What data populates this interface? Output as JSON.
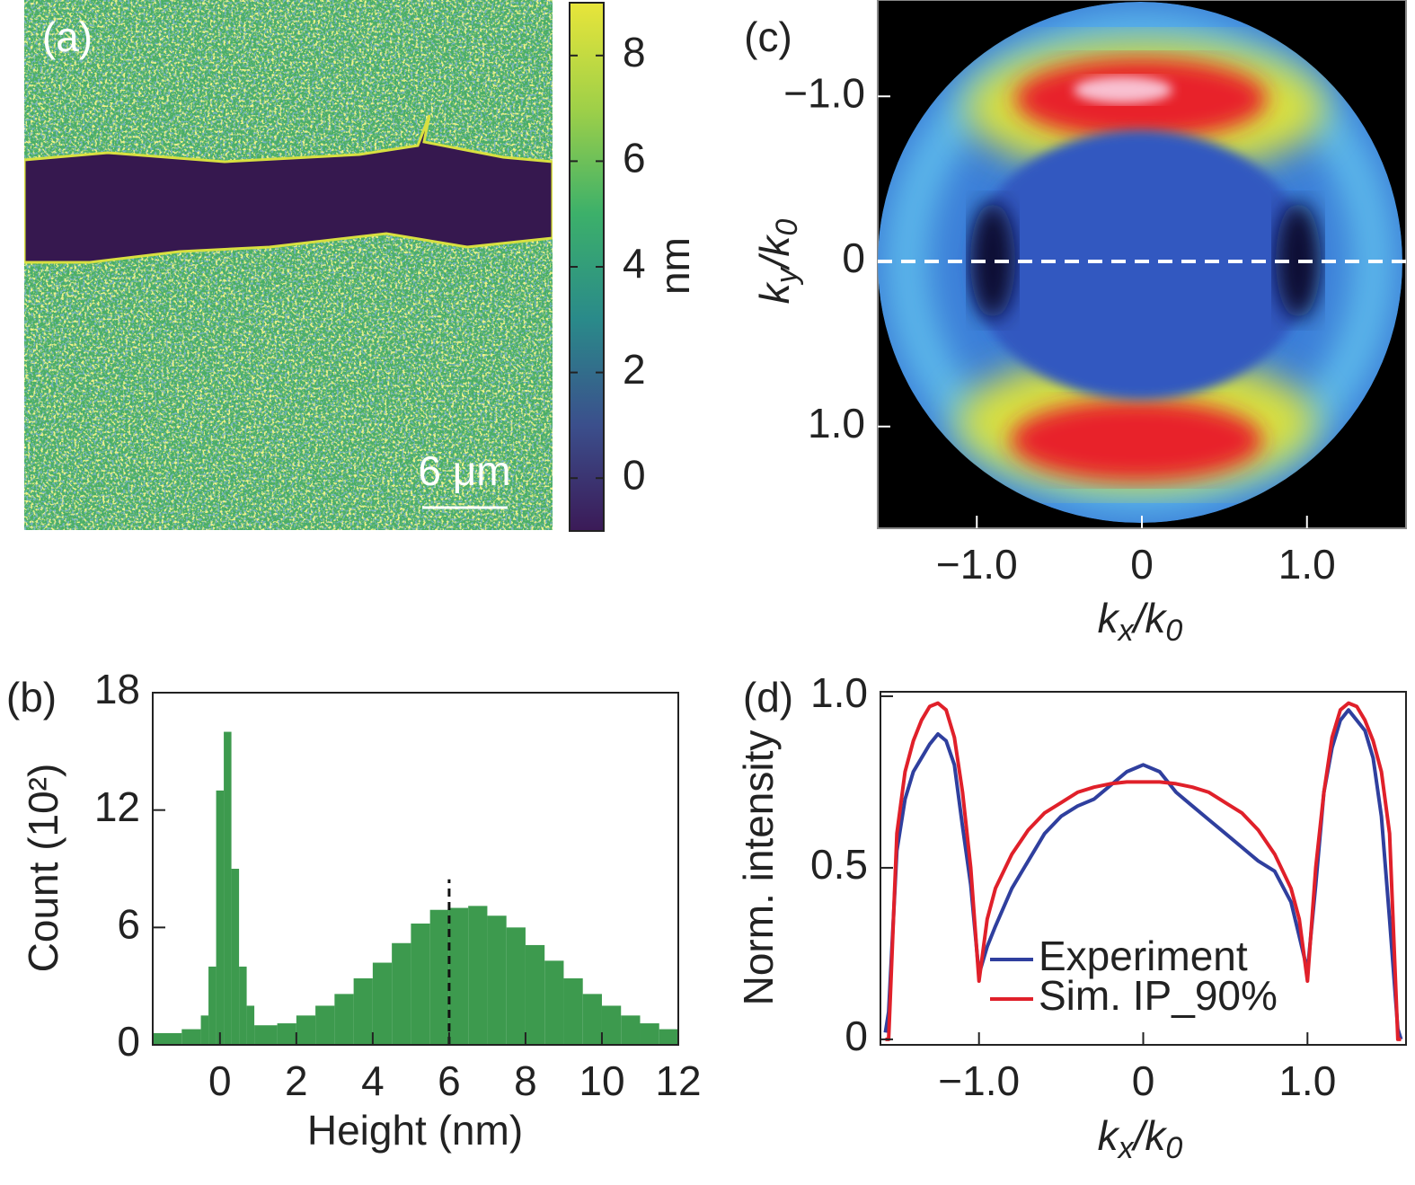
{
  "chart_data": [
    {
      "type": "image",
      "panel_label": "(a)",
      "scale_bar": "6 μm",
      "colorbar": {
        "label": "nm",
        "clim": [
          -1,
          9
        ],
        "cticks": [
          0,
          2,
          4,
          6,
          8
        ],
        "colormap": [
          "#3b1a57",
          "#3b4f8c",
          "#2a8a8a",
          "#3cb06a",
          "#9fd048",
          "#e8e53a"
        ]
      }
    },
    {
      "type": "histogram",
      "panel_label": "(b)",
      "xlabel": "Height (nm)",
      "ylabel": "Count (10²)",
      "color": "#3d9a4e",
      "bins": [
        -1.8,
        -1.0,
        -0.5,
        -0.3,
        -0.1,
        0.1,
        0.3,
        0.5,
        0.7,
        0.9,
        1.5,
        2.0,
        2.5,
        3.0,
        3.5,
        4.0,
        4.5,
        5.0,
        5.5,
        6.0,
        6.5,
        7.0,
        7.5,
        8.0,
        8.5,
        9.0,
        9.5,
        10.0,
        10.5,
        11.0,
        11.5,
        12.0
      ],
      "values": [
        0.6,
        0.8,
        1.5,
        4,
        13,
        16,
        9,
        4,
        2,
        1.0,
        1.1,
        1.5,
        2.0,
        2.6,
        3.4,
        4.2,
        5.2,
        6.2,
        6.9,
        7.0,
        7.1,
        6.6,
        6.0,
        5.1,
        4.3,
        3.4,
        2.6,
        2.0,
        1.5,
        1.1,
        0.8
      ],
      "xlim": [
        -1.76,
        12
      ],
      "xticks": [
        0,
        2,
        4,
        6,
        8,
        10,
        12
      ],
      "ylim": [
        0,
        18
      ],
      "yticks": [
        0,
        6,
        12,
        18
      ],
      "vline": 6
    },
    {
      "type": "image_axes",
      "panel_label": "(c)",
      "xlabel": [
        "k",
        "x",
        "/",
        "k",
        "0"
      ],
      "ylabel": [
        "k",
        "y",
        "/",
        "k",
        "0"
      ],
      "xlim": [
        -1.6,
        1.6
      ],
      "xticks": [
        {
          "value": -1.0,
          "label": "−1.0"
        },
        0,
        {
          "value": 1.0,
          "label": "1.0"
        }
      ],
      "ylim": [
        1.6,
        -1.6
      ],
      "yticks": [
        {
          "value": -1.0,
          "label": "−1.0"
        },
        0,
        {
          "value": 1.0,
          "label": "1.0"
        }
      ],
      "cut_line_y": 0
    },
    {
      "type": "line",
      "panel_label": "(d)",
      "xlabel": [
        "k",
        "x",
        "/",
        "k",
        "0"
      ],
      "ylabel": "Norm. intensity",
      "xlim": [
        -1.6,
        1.6
      ],
      "xticks": [
        {
          "value": -1.0,
          "label": "−1.0"
        },
        0,
        {
          "value": 1.0,
          "label": "1.0"
        }
      ],
      "ylim": [
        -0.016,
        1.013
      ],
      "yticks": [
        0,
        0.5,
        {
          "value": 1.0,
          "label": "1.0"
        }
      ],
      "x": [
        -1.57,
        -1.55,
        -1.5,
        -1.45,
        -1.4,
        -1.35,
        -1.3,
        -1.25,
        -1.2,
        -1.15,
        -1.1,
        -1.05,
        -1.0,
        -0.95,
        -0.9,
        -0.8,
        -0.7,
        -0.6,
        -0.5,
        -0.4,
        -0.3,
        -0.2,
        -0.1,
        0,
        0.1,
        0.2,
        0.3,
        0.4,
        0.5,
        0.6,
        0.7,
        0.8,
        0.9,
        0.95,
        1.0,
        1.05,
        1.1,
        1.15,
        1.2,
        1.25,
        1.3,
        1.35,
        1.4,
        1.45,
        1.5,
        1.55,
        1.57
      ],
      "series": [
        {
          "name": "Experiment",
          "color": "#2f3f9e",
          "values": [
            0.02,
            0.08,
            0.55,
            0.7,
            0.78,
            0.82,
            0.86,
            0.89,
            0.87,
            0.8,
            0.62,
            0.45,
            0.19,
            0.27,
            0.33,
            0.44,
            0.52,
            0.6,
            0.65,
            0.68,
            0.7,
            0.74,
            0.78,
            0.8,
            0.78,
            0.72,
            0.68,
            0.64,
            0.6,
            0.56,
            0.52,
            0.49,
            0.4,
            0.3,
            0.2,
            0.45,
            0.72,
            0.85,
            0.93,
            0.96,
            0.93,
            0.9,
            0.82,
            0.65,
            0.35,
            0.03,
            0
          ]
        },
        {
          "name": "Sim. IP_90%",
          "color": "#e0202a",
          "values": [
            0,
            0,
            0.6,
            0.78,
            0.87,
            0.93,
            0.97,
            0.98,
            0.96,
            0.88,
            0.72,
            0.5,
            0.17,
            0.35,
            0.44,
            0.54,
            0.61,
            0.66,
            0.69,
            0.72,
            0.735,
            0.745,
            0.75,
            0.75,
            0.75,
            0.745,
            0.735,
            0.72,
            0.69,
            0.66,
            0.61,
            0.54,
            0.44,
            0.35,
            0.17,
            0.5,
            0.72,
            0.88,
            0.96,
            0.98,
            0.97,
            0.93,
            0.87,
            0.78,
            0.6,
            0,
            0
          ]
        }
      ]
    }
  ]
}
